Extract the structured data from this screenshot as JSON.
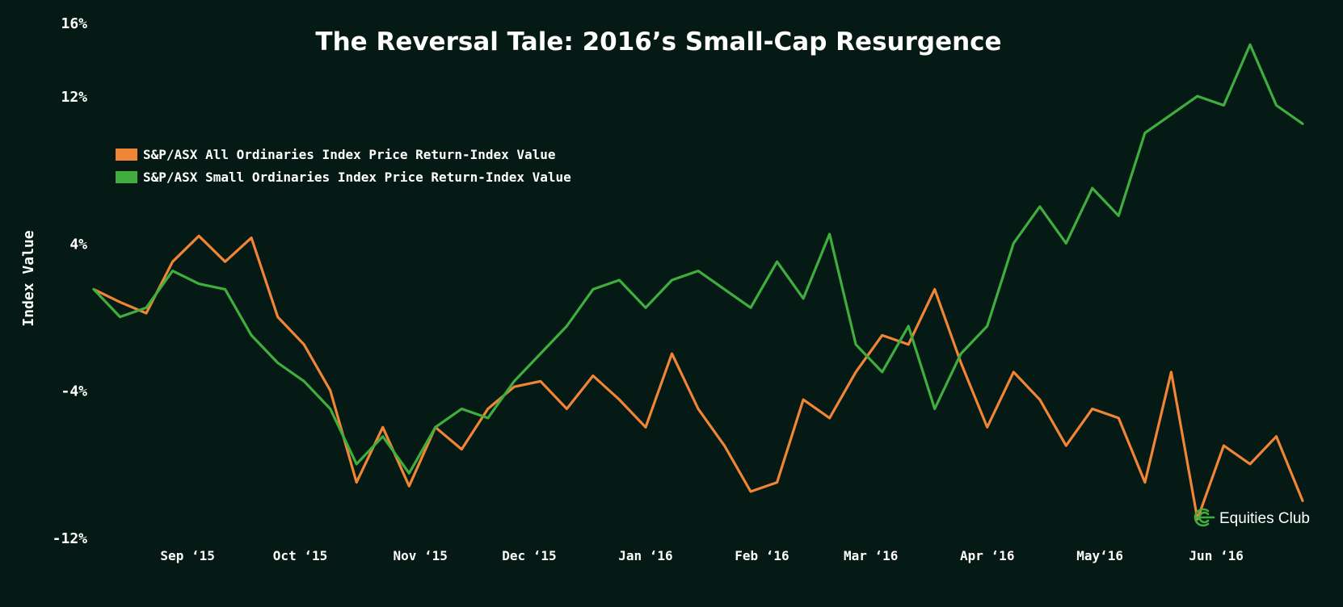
{
  "brand": {
    "name": "Equities Club",
    "color": "#3fae3f"
  },
  "chart_data": {
    "type": "line",
    "title": "The Reversal Tale: 2016’s Small-Cap Resurgence",
    "xlabel": "",
    "ylabel": "Index Value",
    "ylim": [
      -12,
      16
    ],
    "y_ticks": [
      {
        "value": 16,
        "label": "16%"
      },
      {
        "value": 12,
        "label": "12%"
      },
      {
        "value": 4,
        "label": "4%"
      },
      {
        "value": -4,
        "label": "-4%"
      },
      {
        "value": -12,
        "label": "-12%"
      }
    ],
    "x_range": [
      "2015-08-07",
      "2016-06-24"
    ],
    "x_ticks": [
      {
        "date": "2015-09-01",
        "label": "Sep ‘15"
      },
      {
        "date": "2015-10-01",
        "label": "Oct ‘15"
      },
      {
        "date": "2015-11-02",
        "label": "Nov ‘15"
      },
      {
        "date": "2015-12-01",
        "label": "Dec ‘15"
      },
      {
        "date": "2016-01-01",
        "label": "Jan ‘16"
      },
      {
        "date": "2016-02-01",
        "label": "Feb ‘16"
      },
      {
        "date": "2016-03-01",
        "label": "Mar ‘16"
      },
      {
        "date": "2016-04-01",
        "label": "Apr ‘16"
      },
      {
        "date": "2016-05-01",
        "label": "May‘16"
      },
      {
        "date": "2016-06-01",
        "label": "Jun ‘16"
      }
    ],
    "grid": false,
    "legend_position": "top-left",
    "x": [
      "2015-08-07",
      "2015-08-14",
      "2015-08-21",
      "2015-08-28",
      "2015-09-04",
      "2015-09-11",
      "2015-09-18",
      "2015-09-25",
      "2015-10-02",
      "2015-10-09",
      "2015-10-16",
      "2015-10-23",
      "2015-10-30",
      "2015-11-06",
      "2015-11-13",
      "2015-11-20",
      "2015-11-27",
      "2015-12-04",
      "2015-12-11",
      "2015-12-18",
      "2015-12-25",
      "2016-01-01",
      "2016-01-08",
      "2016-01-15",
      "2016-01-22",
      "2016-01-29",
      "2016-02-05",
      "2016-02-12",
      "2016-02-19",
      "2016-02-26",
      "2016-03-04",
      "2016-03-11",
      "2016-03-18",
      "2016-03-25",
      "2016-04-01",
      "2016-04-08",
      "2016-04-15",
      "2016-04-22",
      "2016-04-29",
      "2016-05-06",
      "2016-05-13",
      "2016-05-20",
      "2016-05-27",
      "2016-06-03",
      "2016-06-10",
      "2016-06-17",
      "2016-06-24"
    ],
    "series": [
      {
        "name": "S&P/ASX All Ordinaries Index Price Return-Index Value",
        "color": "#f08536",
        "values": [
          1.5,
          0.8,
          0.2,
          3.0,
          4.4,
          3.0,
          4.3,
          0.0,
          -1.5,
          -4.0,
          -9.0,
          -6.0,
          -9.2,
          -6.0,
          -7.2,
          -5.0,
          -3.8,
          -3.5,
          -5.0,
          -3.2,
          -4.5,
          -6.0,
          -2.0,
          -5.0,
          -7.0,
          -9.5,
          -9.0,
          -4.5,
          -5.5,
          -3.0,
          -1.0,
          -1.5,
          1.5,
          -2.5,
          -6.0,
          -3.0,
          -4.5,
          -7.0,
          -5.0,
          -5.5,
          -9.0,
          -3.0,
          -11.0,
          -7.0,
          -8.0,
          -6.5,
          -10.0
        ]
      },
      {
        "name": "S&P/ASX Small Ordinaries Index Price Return-Index Value",
        "color": "#3fae3f",
        "values": [
          1.5,
          0.0,
          0.5,
          2.5,
          1.8,
          1.5,
          -1.0,
          -2.5,
          -3.5,
          -5.0,
          -8.0,
          -6.5,
          -8.5,
          -6.0,
          -5.0,
          -5.5,
          -3.5,
          -2.0,
          -0.5,
          1.5,
          2.0,
          0.5,
          2.0,
          2.5,
          1.5,
          0.5,
          3.0,
          1.0,
          4.5,
          -1.5,
          -3.0,
          -0.5,
          -5.0,
          -2.0,
          -0.5,
          4.0,
          6.0,
          4.0,
          7.0,
          5.5,
          10.0,
          11.0,
          12.0,
          11.5,
          14.8,
          11.5,
          10.5
        ]
      }
    ]
  }
}
